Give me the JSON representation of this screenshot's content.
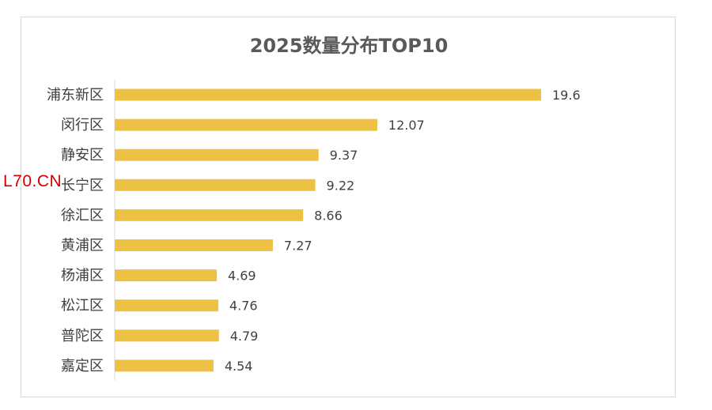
{
  "chart_data": {
    "type": "bar",
    "orientation": "horizontal",
    "title": "2025数量分布TOP10",
    "categories": [
      "浦东新区",
      "闵行区",
      "静安区",
      "长宁区",
      "徐汇区",
      "黄浦区",
      "杨浦区",
      "松江区",
      "普陀区",
      "嘉定区"
    ],
    "values": [
      19.6,
      12.07,
      9.37,
      9.22,
      8.66,
      7.27,
      4.69,
      4.76,
      4.79,
      4.54
    ],
    "value_labels": [
      "19.6",
      "12.07",
      "9.37",
      "9.22",
      "8.66",
      "7.27",
      "4.69",
      "4.76",
      "4.79",
      "4.54"
    ],
    "xlabel": "",
    "ylabel": "",
    "xlim": [
      0,
      19.6
    ],
    "grid": false,
    "legend": "none",
    "bar_color": "#EDC143"
  },
  "watermark": "L70.CN"
}
